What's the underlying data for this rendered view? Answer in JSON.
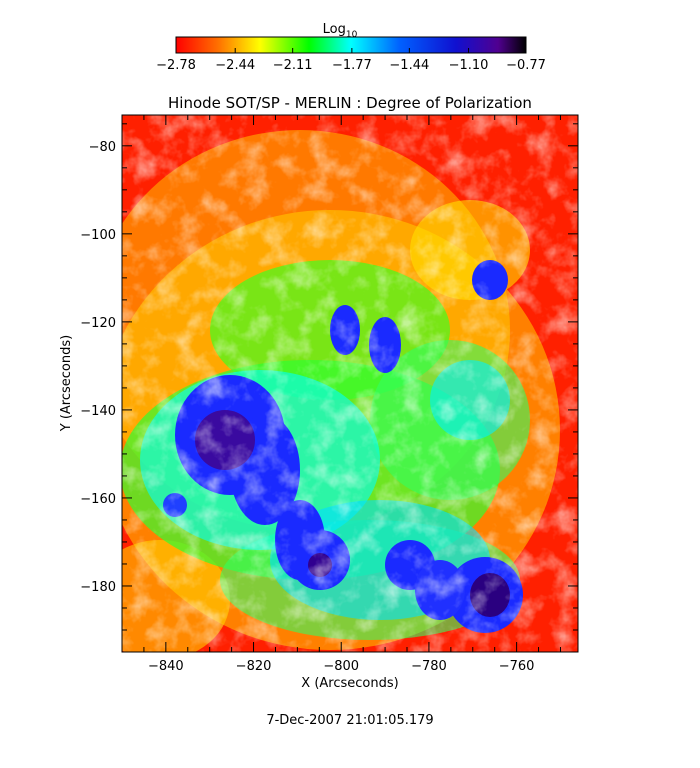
{
  "chart_data": {
    "type": "heatmap",
    "title": "Hinode SOT/SP - MERLIN : Degree of Polarization",
    "xlabel": "X (Arcseconds)",
    "ylabel": "Y (Arcseconds)",
    "xlim": [
      -850,
      -746
    ],
    "ylim": [
      -195,
      -73
    ],
    "x_ticks": [
      -840,
      -820,
      -800,
      -780,
      -760
    ],
    "y_ticks": [
      -80,
      -100,
      -120,
      -140,
      -160,
      -180
    ],
    "x_tick_labels": [
      "−840",
      "−820",
      "−800",
      "−780",
      "−760"
    ],
    "y_tick_labels": [
      "−80",
      "−100",
      "−120",
      "−140",
      "−160",
      "−180"
    ],
    "colorbar": {
      "label": "Log",
      "label_sub": "10",
      "range": [
        -2.78,
        -0.77
      ],
      "tick_values": [
        -2.78,
        -2.44,
        -2.11,
        -1.77,
        -1.44,
        -1.1,
        -0.77
      ],
      "tick_labels": [
        "−2.78",
        "−2.44",
        "−2.11",
        "−1.77",
        "−1.44",
        "−1.10",
        "−0.77"
      ],
      "colors": [
        "#ff0000",
        "#ff8000",
        "#ffff00",
        "#00ff00",
        "#00ffff",
        "#0000ff",
        "#000000"
      ]
    },
    "timestamp": "7-Dec-2007 21:01:05.179"
  }
}
